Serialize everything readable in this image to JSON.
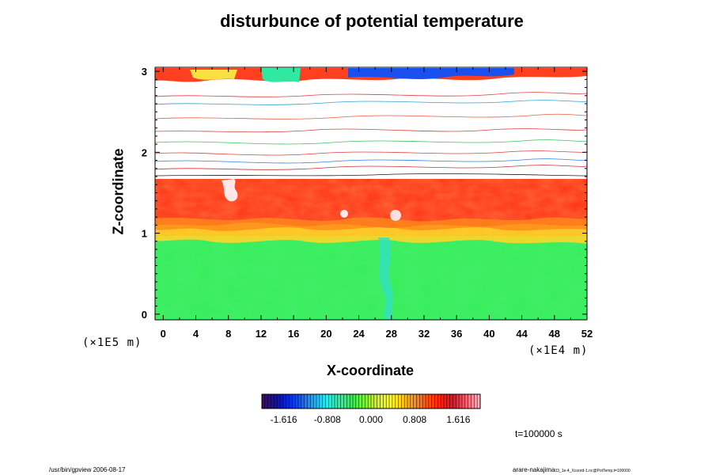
{
  "title": "disturbunce of potential temperature",
  "time_label": "t=100000 s",
  "footer": {
    "left": "/usr/bin/gpview 2006-08-17",
    "right_main": "arare-nakajima",
    "right_sub": "03_1e-4_Xcoord-1.nc@PotTemp,t=100000"
  },
  "colors": {
    "cold": "#1a3cf0",
    "neutral": "#33ee55",
    "warm": "#ff3010"
  },
  "chart_data": {
    "type": "heatmap",
    "title": "disturbunce of potential temperature",
    "xlabel": "X-coordinate",
    "ylabel": "Z-coordinate",
    "x_unit": "(×1E4 m)",
    "y_unit": "(×1E5 m)",
    "xlim": [
      -1,
      52
    ],
    "ylim": [
      -0.07,
      3.05
    ],
    "x_ticks": [
      "0",
      "4",
      "8",
      "12",
      "16",
      "20",
      "24",
      "28",
      "32",
      "36",
      "40",
      "44",
      "48",
      "52"
    ],
    "y_ticks": [
      "0",
      "1",
      "2",
      "3"
    ],
    "colorbar": {
      "min": -2.02,
      "max": 2.02,
      "ticks": [
        "-1.616",
        "-0.808",
        "0.000",
        "0.808",
        "1.616"
      ],
      "colors": [
        "#3a0a6e",
        "#1010b0",
        "#0a28d8",
        "#1060ff",
        "#20b0ff",
        "#30e8e8",
        "#30f0a0",
        "#33ee55",
        "#80f040",
        "#d8f020",
        "#ffff30",
        "#ffc820",
        "#ff8c18",
        "#ff5010",
        "#ff2010",
        "#e81020",
        "#ff6070",
        "#ffb0b8"
      ]
    },
    "layers": [
      {
        "name": "green",
        "z_range": [
          -0.07,
          0.9
        ],
        "approx_value": 0.0
      },
      {
        "name": "yellow",
        "z_range": [
          0.9,
          1.0
        ],
        "approx_value": 1.0
      },
      {
        "name": "red",
        "z_range": [
          1.0,
          1.68
        ],
        "approx_value": 1.7
      },
      {
        "name": "white",
        "z_range": [
          1.68,
          3.05
        ],
        "approx_value": null
      }
    ]
  }
}
